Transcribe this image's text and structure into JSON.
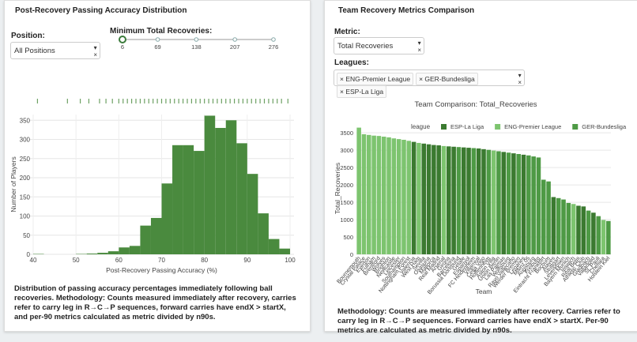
{
  "left_panel": {
    "title": "Post-Recovery Passing Accuracy Distribution",
    "position": {
      "label": "Position:",
      "value": "All Positions"
    },
    "slider": {
      "label": "Minimum Total Recoveries:",
      "value": 6,
      "marks": [
        6,
        69,
        138,
        207,
        276
      ]
    },
    "description": "Distribution of passing accuracy percentages immediately following ball recoveries. Methodology: Counts measured immediately after recovery, carries refer to carry leg in R→C→P sequences, forward carries have endX > startX, and per-90 metrics calculated as metric divided by n90s."
  },
  "right_panel": {
    "title": "Team Recovery Metrics Comparison",
    "metric": {
      "label": "Metric:",
      "value": "Total Recoveries"
    },
    "leagues": {
      "label": "Leagues:",
      "selected": [
        "ENG-Premier League",
        "GER-Bundesliga",
        "ESP-La Liga"
      ]
    },
    "description": "Methodology: Counts are measured immediately after recovery. Carries refer to carry leg in R→C→P sequences. Forward carries have endX > startX. Per-90 metrics are calculated as metric divided by n90s."
  },
  "chart_data": [
    {
      "type": "histogram",
      "xlabel": "Post-Recovery Passing Accuracy (%)",
      "ylabel": "Number of Players",
      "color": "#4a8a3e",
      "bins": [
        40,
        42.5,
        45,
        47.5,
        50,
        52.5,
        55,
        57.5,
        60,
        62.5,
        65,
        67.5,
        70,
        72.5,
        75,
        77.5,
        80,
        82.5,
        85,
        87.5,
        90,
        92.5,
        95,
        97.5,
        100
      ],
      "values": [
        1,
        0,
        0,
        0,
        1,
        2,
        4,
        8,
        18,
        22,
        75,
        95,
        185,
        285,
        285,
        270,
        362,
        330,
        350,
        290,
        210,
        107,
        40,
        15
      ],
      "rug": [
        41,
        48,
        51,
        53,
        55.5,
        57,
        58.5,
        60,
        61,
        62,
        63,
        64,
        65,
        66,
        67,
        68,
        69,
        70,
        71,
        72,
        73,
        74,
        75,
        76,
        77,
        78,
        79,
        80,
        81,
        82,
        83,
        84,
        85,
        86,
        87,
        88,
        89,
        90,
        91,
        92,
        93,
        94,
        95,
        96,
        97,
        98,
        99.5
      ],
      "xlim": [
        40,
        100
      ],
      "xticks": [
        40,
        50,
        60,
        70,
        80,
        90,
        100
      ],
      "ylim": [
        0,
        365
      ],
      "yticks": [
        0,
        50,
        100,
        150,
        200,
        250,
        300,
        350
      ],
      "grid": true
    },
    {
      "type": "bar",
      "title": "Team Comparison: Total_Recoveries",
      "xlabel": "Team",
      "ylabel": "Total_Recoveries",
      "legend_title": "league",
      "categories": [
        "Bournemouth",
        "Crystal Palace",
        "Everton",
        "Fulham",
        "Brentford",
        "Wolves",
        "Brighton",
        "Newcastle",
        "Leicester",
        "Southampton",
        "Nottingham Forest",
        "Valencia",
        "West Ham",
        "Sevilla",
        "Osasuna",
        "Mallorca",
        "Real Madrid",
        "Arsenal",
        "Girona",
        "Barcelona",
        "Borussia Dortmund",
        "Getafe",
        "Espanyol",
        "FC Heidenheim",
        "Villarreal",
        "Celta Vigo",
        "Hoffenheim",
        "Aston Villa",
        "Union Berlin",
        "Las Palmas",
        "Wolfsburg",
        "Rayo Vallecano",
        "Werder Bremen",
        "Leganés",
        "Mainz 05",
        "Augsburg",
        "Freiburg",
        "Eintracht Frankfurt",
        "Bochum",
        "Alavés",
        "Stuttgart",
        "Leverkusen",
        "Bayern Munich",
        "Ipswich",
        "Real Betis",
        "Athletic Club",
        "Gladbach",
        "Valladolid",
        "St. Pauli",
        "Chelsea",
        "Holstein Kiel"
      ],
      "series": [
        {
          "name": "ESP-La Liga",
          "color": "#3b7a30",
          "values": [
            null,
            null,
            null,
            null,
            null,
            null,
            null,
            null,
            null,
            null,
            null,
            3240,
            null,
            3190,
            3170,
            3150,
            3140,
            null,
            3110,
            3100,
            null,
            3080,
            3070,
            null,
            3050,
            3030,
            null,
            null,
            null,
            2950,
            null,
            2910,
            null,
            2870,
            null,
            null,
            null,
            null,
            null,
            1650,
            null,
            null,
            null,
            null,
            1400,
            1380,
            null,
            1200,
            null,
            null,
            null
          ]
        },
        {
          "name": "ENG-Premier League",
          "color": "#7dc46f",
          "values": [
            3650,
            3460,
            3440,
            3420,
            3410,
            3390,
            3370,
            3340,
            3320,
            3300,
            3270,
            null,
            3210,
            null,
            null,
            null,
            null,
            3120,
            null,
            null,
            null,
            null,
            null,
            null,
            null,
            null,
            null,
            2990,
            null,
            null,
            null,
            null,
            null,
            null,
            null,
            null,
            null,
            null,
            null,
            null,
            null,
            null,
            null,
            1450,
            null,
            null,
            null,
            null,
            null,
            990,
            null
          ]
        },
        {
          "name": "GER-Bundesliga",
          "color": "#4e9a45",
          "values": [
            null,
            null,
            null,
            null,
            null,
            null,
            null,
            null,
            null,
            null,
            null,
            null,
            null,
            null,
            null,
            null,
            null,
            null,
            null,
            null,
            3090,
            null,
            null,
            3060,
            null,
            null,
            3010,
            null,
            2970,
            null,
            2930,
            null,
            2890,
            null,
            2850,
            2820,
            2790,
            2150,
            2100,
            null,
            1620,
            1580,
            1480,
            null,
            null,
            null,
            1260,
            null,
            1100,
            null,
            960
          ]
        }
      ],
      "ylim": [
        0,
        3800
      ],
      "yticks": [
        0,
        500,
        1000,
        1500,
        2000,
        2500,
        3000,
        3500
      ],
      "grid": true
    }
  ]
}
